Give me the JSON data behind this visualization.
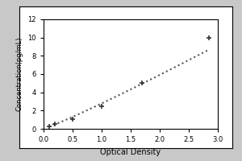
{
  "title": "",
  "xlabel": "Optical Density",
  "ylabel": "Concentration(pg/mL)",
  "x_data": [
    0.1,
    0.2,
    0.5,
    1.0,
    1.7,
    2.85
  ],
  "y_data": [
    0.25,
    0.5,
    1.1,
    2.5,
    5.0,
    10.0
  ],
  "xlim": [
    0,
    3.0
  ],
  "ylim": [
    0,
    12
  ],
  "xticks": [
    0,
    0.5,
    1.0,
    1.5,
    2.0,
    2.5,
    3.0
  ],
  "yticks": [
    0,
    2,
    4,
    6,
    8,
    10,
    12
  ],
  "line_color": "#555555",
  "marker_color": "#333333",
  "line_style": "dotted",
  "marker_style": "+",
  "marker_size": 5,
  "line_width": 1.5,
  "bg_color": "#ffffff",
  "tick_labelsize": 6,
  "xlabel_fontsize": 7,
  "ylabel_fontsize": 6,
  "figure_bg": "#d0d0d0"
}
